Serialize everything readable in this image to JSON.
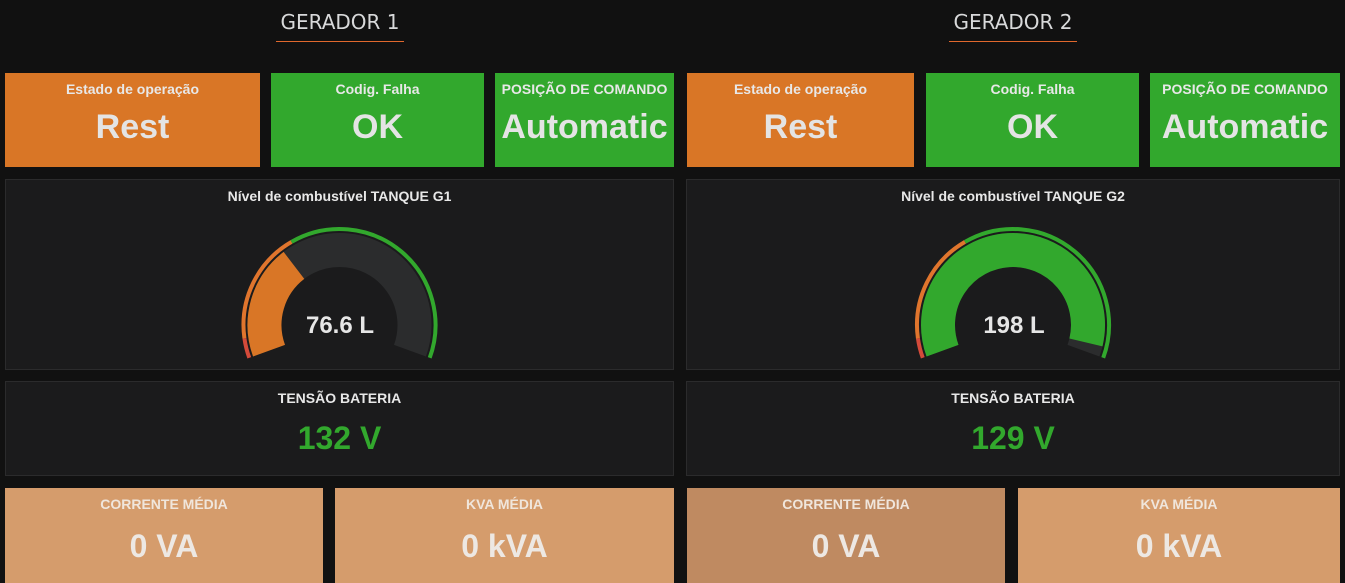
{
  "generators": [
    {
      "title": "GERADOR 1",
      "estado": {
        "label": "Estado de operação",
        "value": "Rest",
        "color": "#d97626"
      },
      "falha": {
        "label": "Codig. Falha",
        "value": "OK",
        "color": "#32a82d"
      },
      "posicao": {
        "label": "POSIÇÃO DE COMANDO",
        "value": "Automatic",
        "color": "#32a82d"
      },
      "fuel": {
        "title": "Nível de combustível TANQUE G1",
        "display": "76.6 L",
        "fill_fraction": 0.33,
        "fill_color": "#d97626"
      },
      "bateria": {
        "title": "TENSÃO BATERIA",
        "value": "132 V",
        "color": "#32a82d"
      },
      "corrente": {
        "label": "CORRENTE MÉDIA",
        "value": "0 VA"
      },
      "kva": {
        "label": "KVA MÉDIA",
        "value": "0 kVA"
      }
    },
    {
      "title": "GERADOR 2",
      "estado": {
        "label": "Estado de operação",
        "value": "Rest",
        "color": "#d97626"
      },
      "falha": {
        "label": "Codig. Falha",
        "value": "OK",
        "color": "#32a82d"
      },
      "posicao": {
        "label": "POSIÇÃO DE COMANDO",
        "value": "Automatic",
        "color": "#32a82d"
      },
      "fuel": {
        "title": "Nível de combustível TANQUE G2",
        "display": "198 L",
        "fill_fraction": 0.97,
        "fill_color": "#32a82d"
      },
      "bateria": {
        "title": "TENSÃO BATERIA",
        "value": "129 V",
        "color": "#32a82d"
      },
      "corrente": {
        "label": "CORRENTE MÉDIA",
        "value": "0 VA"
      },
      "kva": {
        "label": "KVA MÉDIA",
        "value": "0 kVA"
      }
    }
  ],
  "gauge_thresholds": {
    "colors": [
      "#d44a3a",
      "#e0752d",
      "#32a82d"
    ]
  },
  "colors": {
    "background": "#111111",
    "panel_dark": "#1b1b1c",
    "orange": "#d97626",
    "green": "#32a82d",
    "tan": "#d59c6c",
    "tan_dark": "#bf8a61",
    "title_underline": "#e0682d"
  }
}
